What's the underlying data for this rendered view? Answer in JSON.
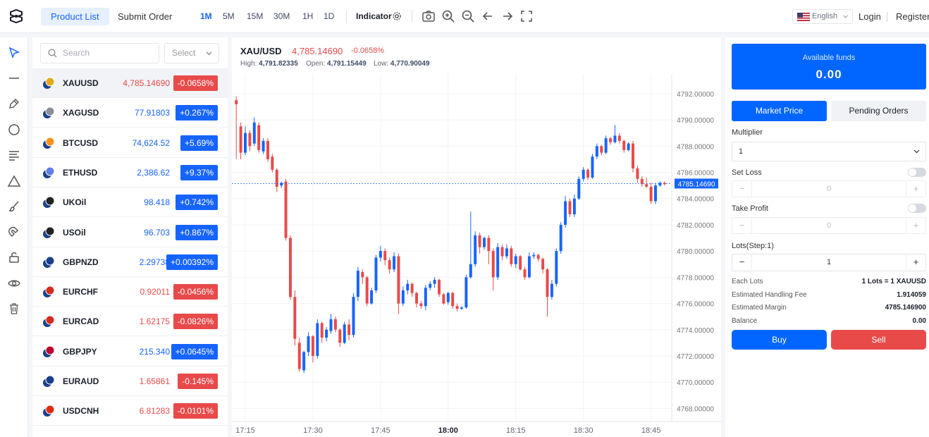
{
  "header": {
    "tabs": [
      {
        "label": "Product List",
        "active": true
      },
      {
        "label": "Submit Order",
        "active": false
      }
    ],
    "timeframes": [
      {
        "label": "1M",
        "active": true
      },
      {
        "label": "5M"
      },
      {
        "label": "15M"
      },
      {
        "label": "30M"
      },
      {
        "label": "1H"
      },
      {
        "label": "1D"
      }
    ],
    "indicator_label": "Indicator",
    "tools": [
      "camera-icon",
      "zoom-in-icon",
      "zoom-out-icon",
      "arrow-left-icon",
      "arrow-right-icon",
      "fullscreen-icon"
    ],
    "language": "English",
    "login_label": "Login",
    "register_label": "Register"
  },
  "left_tools": [
    "cursor-icon",
    "horizontal-line-icon",
    "pen-icon",
    "circle-icon",
    "text-lines-icon",
    "triangle-icon",
    "brush-icon",
    "magnet-icon",
    "lock-icon",
    "eye-icon",
    "trash-icon"
  ],
  "product_list": {
    "search_placeholder": "Search",
    "select_label": "Select",
    "items": [
      {
        "symbol": "XAUUSD",
        "price": "4,785.14690",
        "change": "-0.0658%",
        "dir": "down",
        "selected": true,
        "icon_color": "#e6a817"
      },
      {
        "symbol": "XAGUSD",
        "price": "77.91803",
        "change": "+0.267%",
        "dir": "up",
        "icon_color": "#8a8f99"
      },
      {
        "symbol": "BTCUSD",
        "price": "74,624.52",
        "change": "+5.69%",
        "dir": "up",
        "icon_color": "#f7931a"
      },
      {
        "symbol": "ETHUSD",
        "price": "2,386.62",
        "change": "+9.37%",
        "dir": "up",
        "icon_color": "#627eea"
      },
      {
        "symbol": "UKOil",
        "price": "98.418",
        "change": "+0.742%",
        "dir": "up",
        "icon_color": "#222"
      },
      {
        "symbol": "USOil",
        "price": "96.703",
        "change": "+0.867%",
        "dir": "up",
        "icon_color": "#222"
      },
      {
        "symbol": "GBPNZD",
        "price": "2.29738",
        "change": "+0.00392%",
        "dir": "up",
        "icon_color": "#1b3f8b"
      },
      {
        "symbol": "EURCHF",
        "price": "0.92011",
        "change": "-0.0456%",
        "dir": "down",
        "icon_color": "#d52b1e"
      },
      {
        "symbol": "EURCAD",
        "price": "1.62175",
        "change": "-0.0826%",
        "dir": "down",
        "icon_color": "#d52b1e"
      },
      {
        "symbol": "GBPJPY",
        "price": "215.340",
        "change": "+0.0645%",
        "dir": "up",
        "icon_color": "#bc002d"
      },
      {
        "symbol": "EURAUD",
        "price": "1.65861",
        "change": "-0.145%",
        "dir": "down",
        "icon_color": "#1b3f8b"
      },
      {
        "symbol": "USDCNH",
        "price": "6.81283",
        "change": "-0.0101%",
        "dir": "down",
        "icon_color": "#de2910"
      }
    ]
  },
  "chart_header": {
    "symbol": "XAU/USD",
    "price": "4,785.14690",
    "change": "-0.0658%",
    "high_label": "High:",
    "high": "4,791.82335",
    "open_label": "Open:",
    "open": "4,791.15449",
    "low_label": "Low:",
    "low": "4,770.90049"
  },
  "chart_data": {
    "type": "candlestick",
    "ylim": [
      4767,
      4793.5
    ],
    "y_ticks": [
      "4792.00000",
      "4790.00000",
      "4788.00000",
      "4786.00000",
      "4784.00000",
      "4782.00000",
      "4780.00000",
      "4778.00000",
      "4776.00000",
      "4774.00000",
      "4772.00000",
      "4770.00000",
      "4768.00000"
    ],
    "x_ticks": [
      {
        "label": "17:15"
      },
      {
        "label": "17:30"
      },
      {
        "label": "17:45"
      },
      {
        "label": "18:00",
        "bold": true
      },
      {
        "label": "18:15"
      },
      {
        "label": "18:30"
      },
      {
        "label": "18:45"
      }
    ],
    "x_tick_index": [
      2,
      17,
      32,
      47,
      62,
      77,
      92
    ],
    "current_price": 4785.1469,
    "current_price_label": "4785.14690",
    "up_color": "#1664ff",
    "down_color": "#e84a4a",
    "candles": [
      [
        4791.5,
        4791.2,
        4791.8,
        4787.0
      ],
      [
        4789.5,
        4787.5,
        4789.8,
        4787.0
      ],
      [
        4787.5,
        4789.0,
        4789.5,
        4787.3
      ],
      [
        4789.0,
        4788.0,
        4789.2,
        4787.6
      ],
      [
        4788.2,
        4789.8,
        4790.2,
        4788.0
      ],
      [
        4789.6,
        4787.7,
        4789.8,
        4787.5
      ],
      [
        4787.6,
        4788.4,
        4788.6,
        4787.4
      ],
      [
        4788.4,
        4787.0,
        4788.6,
        4786.8
      ],
      [
        4787.2,
        4786.2,
        4787.4,
        4786.0
      ],
      [
        4786.2,
        4784.9,
        4786.3,
        4784.5
      ],
      [
        4785.0,
        4785.2,
        4785.3,
        4784.8
      ],
      [
        4785.3,
        4781.0,
        4785.5,
        4780.8
      ],
      [
        4781.0,
        4776.5,
        4781.2,
        4776.3
      ],
      [
        4776.5,
        4773.3,
        4777.0,
        4772.8
      ],
      [
        4773.0,
        4771.0,
        4773.4,
        4770.8
      ],
      [
        4770.9,
        4772.3,
        4772.4,
        4770.7
      ],
      [
        4772.3,
        4773.5,
        4773.8,
        4772.0
      ],
      [
        4773.5,
        4772.0,
        4773.6,
        4771.5
      ],
      [
        4772.0,
        4774.5,
        4774.8,
        4771.8
      ],
      [
        4774.5,
        4773.4,
        4774.6,
        4773.0
      ],
      [
        4773.4,
        4774.0,
        4774.2,
        4773.1
      ],
      [
        4773.9,
        4774.8,
        4775.2,
        4773.7
      ],
      [
        4774.8,
        4774.0,
        4775.0,
        4773.8
      ],
      [
        4774.0,
        4773.0,
        4774.1,
        4772.7
      ],
      [
        4773.0,
        4774.4,
        4774.6,
        4772.9
      ],
      [
        4774.4,
        4773.6,
        4774.8,
        4773.2
      ],
      [
        4773.6,
        4776.5,
        4776.8,
        4773.4
      ],
      [
        4776.5,
        4778.5,
        4778.8,
        4776.2
      ],
      [
        4778.4,
        4778.0,
        4778.6,
        4777.5
      ],
      [
        4778.0,
        4776.0,
        4778.1,
        4775.8
      ],
      [
        4776.0,
        4777.0,
        4777.2,
        4775.9
      ],
      [
        4777.0,
        4779.5,
        4779.7,
        4776.8
      ],
      [
        4779.5,
        4780.0,
        4780.4,
        4779.2
      ],
      [
        4780.0,
        4779.3,
        4780.2,
        4778.9
      ],
      [
        4779.3,
        4778.6,
        4779.5,
        4778.3
      ],
      [
        4778.6,
        4779.6,
        4779.9,
        4778.4
      ],
      [
        4779.6,
        4776.0,
        4779.8,
        4775.2
      ],
      [
        4776.0,
        4777.0,
        4777.3,
        4775.8
      ],
      [
        4777.0,
        4777.5,
        4777.8,
        4776.7
      ],
      [
        4777.5,
        4776.8,
        4777.6,
        4776.5
      ],
      [
        4776.8,
        4776.0,
        4776.9,
        4775.7
      ],
      [
        4776.0,
        4775.8,
        4776.2,
        4775.6
      ],
      [
        4775.8,
        4777.2,
        4777.4,
        4775.5
      ],
      [
        4777.2,
        4777.5,
        4777.7,
        4777.0
      ],
      [
        4777.5,
        4777.8,
        4778.0,
        4777.2
      ],
      [
        4777.8,
        4776.7,
        4777.9,
        4776.5
      ],
      [
        4776.7,
        4776.0,
        4776.8,
        4775.9
      ],
      [
        4776.1,
        4776.8,
        4776.9,
        4775.9
      ],
      [
        4776.8,
        4775.8,
        4776.9,
        4775.6
      ],
      [
        4775.8,
        4775.6,
        4776.0,
        4775.4
      ],
      [
        4775.6,
        4775.7,
        4775.8,
        4775.5
      ],
      [
        4775.7,
        4778.0,
        4778.2,
        4775.6
      ],
      [
        4778.0,
        4779.0,
        4783.0,
        4777.9
      ],
      [
        4779.0,
        4781.2,
        4781.5,
        4778.8
      ],
      [
        4781.2,
        4780.3,
        4781.4,
        4779.8
      ],
      [
        4780.3,
        4781.0,
        4781.1,
        4780.1
      ],
      [
        4781.0,
        4780.0,
        4781.2,
        4779.0
      ],
      [
        4780.0,
        4778.0,
        4780.2,
        4777.0
      ],
      [
        4778.0,
        4780.3,
        4780.6,
        4777.8
      ],
      [
        4780.3,
        4779.6,
        4780.5,
        4779.3
      ],
      [
        4779.6,
        4780.2,
        4780.5,
        4779.4
      ],
      [
        4780.2,
        4779.0,
        4780.4,
        4778.8
      ],
      [
        4779.0,
        4779.6,
        4779.8,
        4778.7
      ],
      [
        4779.6,
        4778.6,
        4779.7,
        4778.5
      ],
      [
        4778.6,
        4778.0,
        4778.8,
        4777.8
      ],
      [
        4778.0,
        4779.6,
        4779.9,
        4777.9
      ],
      [
        4779.6,
        4779.7,
        4779.9,
        4779.4
      ],
      [
        4779.7,
        4779.4,
        4779.8,
        4779.2
      ],
      [
        4779.4,
        4778.6,
        4779.5,
        4778.3
      ],
      [
        4778.6,
        4776.5,
        4778.7,
        4775.0
      ],
      [
        4776.5,
        4777.5,
        4777.8,
        4776.3
      ],
      [
        4777.5,
        4780.0,
        4780.2,
        4777.3
      ],
      [
        4780.0,
        4782.0,
        4782.2,
        4779.8
      ],
      [
        4782.0,
        4783.8,
        4784.2,
        4781.8
      ],
      [
        4783.8,
        4782.8,
        4784.0,
        4782.6
      ],
      [
        4782.8,
        4784.0,
        4784.3,
        4782.6
      ],
      [
        4784.0,
        4785.5,
        4785.7,
        4783.9
      ],
      [
        4785.5,
        4786.2,
        4786.4,
        4785.3
      ],
      [
        4786.2,
        4785.6,
        4786.3,
        4785.4
      ],
      [
        4785.6,
        4787.2,
        4787.4,
        4785.5
      ],
      [
        4787.2,
        4788.0,
        4788.2,
        4787.0
      ],
      [
        4788.0,
        4787.5,
        4788.1,
        4787.3
      ],
      [
        4787.5,
        4788.6,
        4788.8,
        4787.4
      ],
      [
        4788.6,
        4788.3,
        4788.7,
        4788.1
      ],
      [
        4788.3,
        4788.8,
        4789.6,
        4788.2
      ],
      [
        4788.8,
        4788.4,
        4789.0,
        4788.2
      ],
      [
        4788.4,
        4787.7,
        4788.5,
        4787.5
      ],
      [
        4787.7,
        4788.2,
        4788.3,
        4787.6
      ],
      [
        4788.2,
        4786.3,
        4788.4,
        4786.0
      ],
      [
        4786.3,
        4785.5,
        4786.5,
        4785.2
      ],
      [
        4785.5,
        4785.1,
        4785.7,
        4784.9
      ],
      [
        4785.1,
        4784.9,
        4785.6,
        4784.8
      ],
      [
        4784.9,
        4783.8,
        4785.2,
        4783.6
      ],
      [
        4783.8,
        4785.0,
        4785.2,
        4783.6
      ],
      [
        4785.0,
        4785.2,
        4785.3,
        4784.9
      ],
      [
        4785.2,
        4785.1,
        4785.3,
        4785.0
      ]
    ]
  },
  "order_panel": {
    "funds_label": "Available funds",
    "funds_value": "0.00",
    "mode_tabs": [
      "Market Price",
      "Pending Orders"
    ],
    "multiplier_label": "Multiplier",
    "multiplier_value": "1",
    "set_loss_label": "Set Loss",
    "set_loss_value": "0",
    "take_profit_label": "Take Profit",
    "take_profit_value": "0",
    "lots_label": "Lots(Step:1)",
    "lots_value": "1",
    "minus": "−",
    "plus": "+",
    "info": [
      {
        "label": "Each Lots",
        "value": "1 Lots = 1 XAUUSD"
      },
      {
        "label": "Estimated Handling Fee",
        "value": "1.914059"
      },
      {
        "label": "Estimated Margin",
        "value": "4785.146900"
      },
      {
        "label": "Balance",
        "value": "0.00"
      }
    ],
    "buy_label": "Buy",
    "sell_label": "Sell"
  }
}
